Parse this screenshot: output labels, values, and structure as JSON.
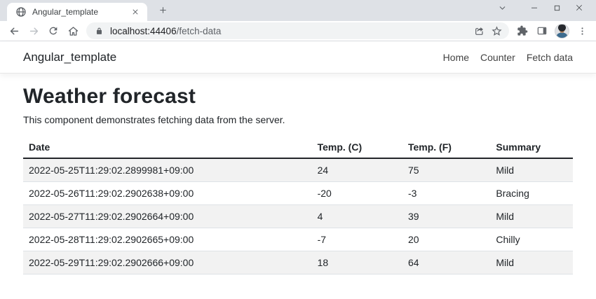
{
  "browser": {
    "tab": {
      "title": "Angular_template"
    },
    "url": {
      "host": "localhost:44406",
      "path": "/fetch-data"
    }
  },
  "navbar": {
    "brand": "Angular_template",
    "links": [
      {
        "label": "Home"
      },
      {
        "label": "Counter"
      },
      {
        "label": "Fetch data"
      }
    ]
  },
  "main": {
    "title": "Weather forecast",
    "description": "This component demonstrates fetching data from the server.",
    "table": {
      "headers": [
        "Date",
        "Temp. (C)",
        "Temp. (F)",
        "Summary"
      ],
      "rows": [
        [
          "2022-05-25T11:29:02.2899981+09:00",
          "24",
          "75",
          "Mild"
        ],
        [
          "2022-05-26T11:29:02.2902638+09:00",
          "-20",
          "-3",
          "Bracing"
        ],
        [
          "2022-05-27T11:29:02.2902664+09:00",
          "4",
          "39",
          "Mild"
        ],
        [
          "2022-05-28T11:29:02.2902665+09:00",
          "-7",
          "20",
          "Chilly"
        ],
        [
          "2022-05-29T11:29:02.2902666+09:00",
          "18",
          "64",
          "Mild"
        ]
      ]
    }
  },
  "icons": {
    "favicon": "globe",
    "tab_close": "x",
    "new_tab": "plus",
    "window": [
      "chevron-down",
      "minimize",
      "maximize",
      "close"
    ],
    "toolbar": [
      "back-arrow",
      "forward-arrow",
      "reload",
      "home",
      "lock",
      "share",
      "star",
      "extensions-puzzle",
      "side-panel",
      "avatar",
      "kebab-menu"
    ]
  },
  "colors": {
    "tabstrip_bg": "#dee1e6",
    "omnibox_bg": "#f1f3f4",
    "icon_gray": "#5f6368",
    "text_dark": "#212529",
    "table_stripe": "#f2f2f2",
    "table_border": "#dee2e6",
    "header_border": "#212529"
  }
}
